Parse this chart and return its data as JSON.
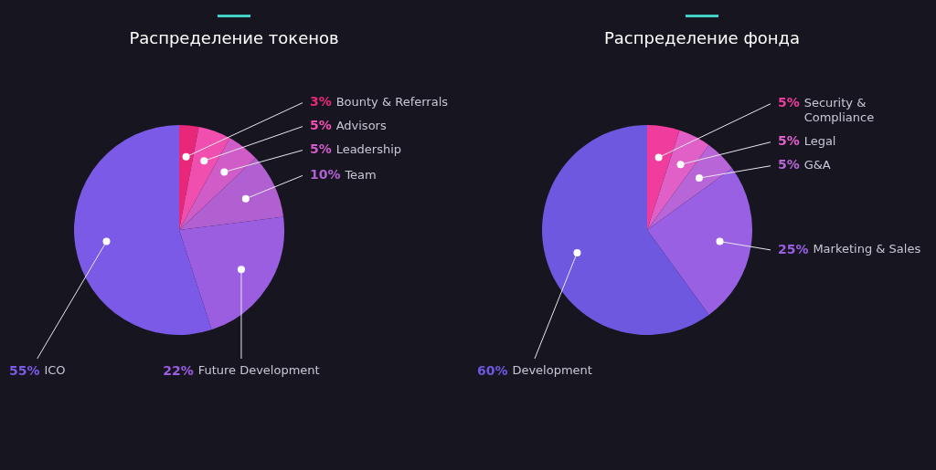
{
  "chart_data": [
    {
      "type": "pie",
      "title": "Распределение токенов",
      "categories": [
        "Bounty & Referrals",
        "Advisors",
        "Leadership",
        "Team",
        "Future Development",
        "ICO"
      ],
      "values": [
        3,
        5,
        5,
        10,
        22,
        55
      ],
      "value_labels": [
        "3%",
        "5%",
        "5%",
        "10%",
        "22%",
        "55%"
      ],
      "colors": [
        "#e8267a",
        "#f04fb0",
        "#d05cc8",
        "#b060d0",
        "#9b5ee0",
        "#7a5ae6"
      ]
    },
    {
      "type": "pie",
      "title": "Распределение фонда",
      "categories": [
        "Security & Compliance",
        "Legal",
        "G&A",
        "Marketing & Sales",
        "Development"
      ],
      "values": [
        5,
        5,
        5,
        25,
        60
      ],
      "value_labels": [
        "5%",
        "5%",
        "5%",
        "25%",
        "60%"
      ],
      "colors": [
        "#f03c9c",
        "#e060c8",
        "#b865d8",
        "#9a60e4",
        "#6e58e0"
      ]
    }
  ]
}
